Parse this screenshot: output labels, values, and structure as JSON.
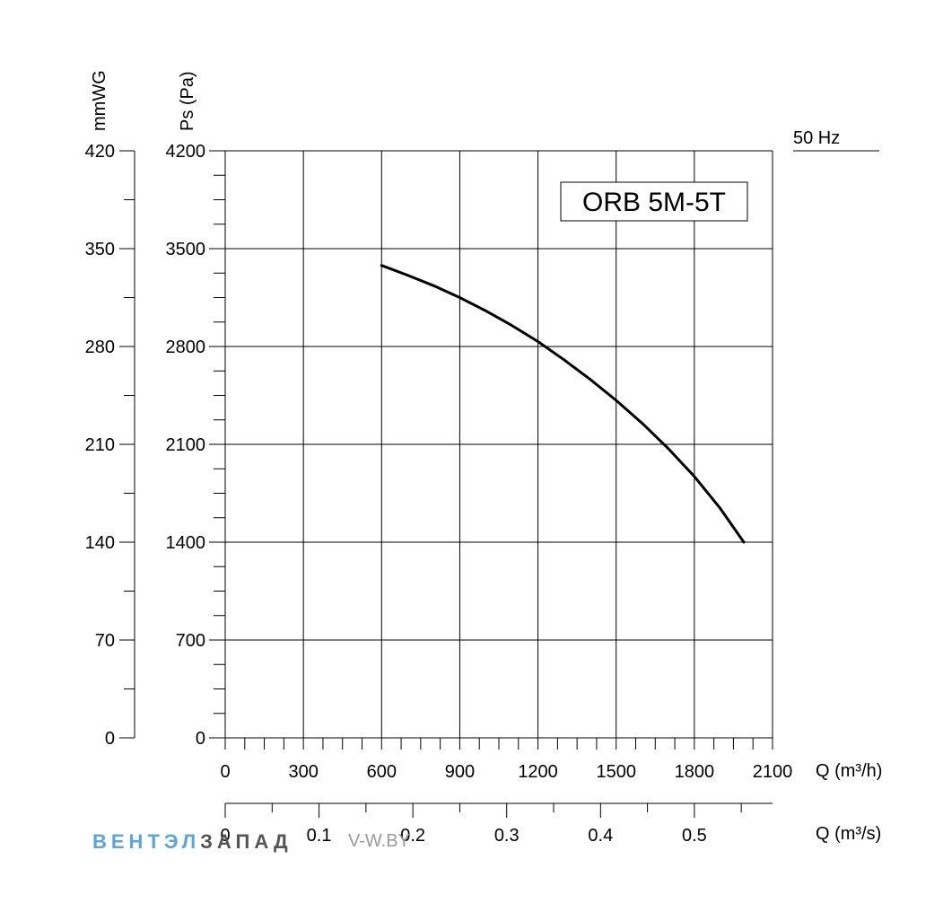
{
  "chart_data": {
    "type": "line",
    "model_label": "ORB 5M-5T",
    "frequency_label": "50 Hz",
    "y_label_left": "mmWG",
    "y_label_right": "Ps (Pa)",
    "x_label": "Q (m³/h)",
    "x2_label": "Q (m³/s)",
    "xlim": [
      0,
      2100
    ],
    "ylim": [
      0,
      4200
    ],
    "x_ticks": [
      "0",
      "300",
      "600",
      "900",
      "1200",
      "1500",
      "1800",
      "2100"
    ],
    "x_tick_values": [
      0,
      300,
      600,
      900,
      1200,
      1500,
      1800,
      2100
    ],
    "y_ticks": [
      "0",
      "700",
      "1400",
      "2100",
      "2800",
      "3500",
      "4200"
    ],
    "y_tick_values": [
      0,
      700,
      1400,
      2100,
      2800,
      3500,
      4200
    ],
    "mmwg_ticks": [
      "0",
      "70",
      "140",
      "210",
      "280",
      "350",
      "420"
    ],
    "mmwg_tick_values": [
      0,
      70,
      140,
      210,
      280,
      350,
      420
    ],
    "m3s_ticks": [
      "0",
      "0.1",
      "0.2",
      "0.3",
      "0.4",
      "0.5"
    ],
    "m3s_tick_values": [
      0,
      0.1,
      0.2,
      0.3,
      0.4,
      0.5
    ],
    "m3s_range": [
      0,
      0.5833
    ],
    "series": [
      {
        "name": "ORB 5M-5T",
        "x": [
          600,
          700,
          800,
          900,
          1000,
          1100,
          1200,
          1300,
          1400,
          1500,
          1600,
          1700,
          1800,
          1900,
          1990
        ],
        "y": [
          3380,
          3310,
          3235,
          3150,
          3055,
          2950,
          2835,
          2705,
          2565,
          2415,
          2250,
          2070,
          1870,
          1640,
          1400
        ]
      }
    ],
    "grid": true
  },
  "watermark": {
    "part1": "ВЕНТЭЛ",
    "part2": "ЗАПАД",
    "part3": "V-W.BY",
    "color1": "#5aa6dc",
    "color2": "#555555",
    "color3": "#9a9a9a"
  }
}
